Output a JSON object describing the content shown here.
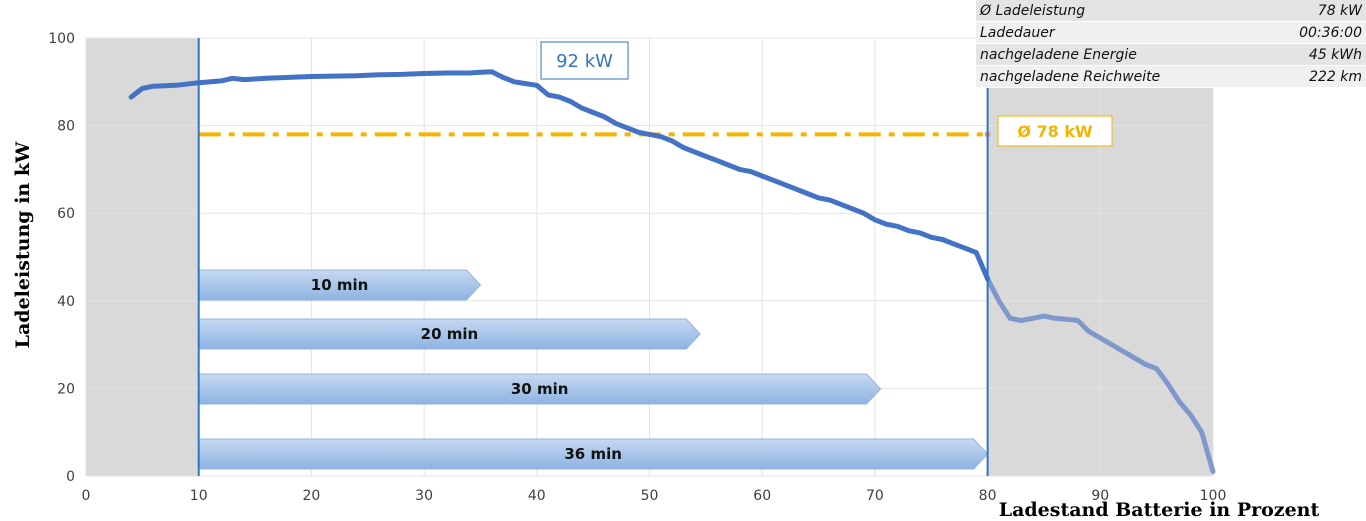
{
  "chart_data": {
    "type": "line",
    "title": "",
    "ylabel": "Ladeleistung in kW",
    "xlabel": "Ladestand Batterie in Prozent",
    "xlim": [
      0,
      100
    ],
    "ylim": [
      0,
      100
    ],
    "x_ticks": [
      0,
      10,
      20,
      30,
      40,
      50,
      60,
      70,
      80,
      90,
      100
    ],
    "y_ticks": [
      0,
      20,
      40,
      60,
      80,
      100
    ],
    "grid": true,
    "colors": {
      "line": "#4472c4",
      "line_faded": "#7f98cc",
      "average": "#f4b400",
      "shade": "#d9d9d9",
      "marker": "#2f75c7",
      "bar_top": "#c6d9f0",
      "bar_bottom": "#8db3e2"
    },
    "shaded_regions": [
      [
        0,
        10
      ],
      [
        80,
        100
      ]
    ],
    "markers_x": [
      10,
      80
    ],
    "series": [
      {
        "x": [
          4,
          5,
          6,
          8,
          10,
          12,
          13,
          14,
          16,
          18,
          20,
          22,
          24,
          26,
          28,
          30,
          32,
          34,
          35,
          36,
          37,
          38,
          39,
          40,
          41,
          42,
          43,
          44,
          45,
          46,
          47,
          48,
          49,
          50,
          51,
          52,
          53,
          54,
          55,
          56,
          57,
          58,
          59,
          60,
          61,
          62,
          63,
          64,
          65,
          66,
          67,
          68,
          69,
          70,
          71,
          72,
          73,
          74,
          75,
          76,
          77,
          78,
          79,
          80,
          81,
          82,
          83,
          84,
          85,
          86,
          87,
          88,
          89,
          90,
          91,
          92,
          93,
          94,
          95,
          96,
          97,
          98,
          99,
          100
        ],
        "y": [
          86.5,
          88.5,
          89,
          89.2,
          89.8,
          90.2,
          90.8,
          90.5,
          90.8,
          91,
          91.2,
          91.3,
          91.4,
          91.6,
          91.7,
          91.9,
          92,
          92,
          92.2,
          92.3,
          91,
          90,
          89.6,
          89.2,
          87,
          86.5,
          85.5,
          84,
          83,
          82,
          80.5,
          79.5,
          78.5,
          78,
          77.5,
          76.5,
          75,
          74,
          73,
          72,
          71,
          70,
          69.5,
          68.5,
          67.5,
          66.5,
          65.5,
          64.5,
          63.5,
          63,
          62,
          61,
          60,
          58.5,
          57.5,
          57,
          56,
          55.5,
          54.5,
          54,
          53,
          52,
          51,
          45,
          40,
          36,
          35.5,
          36,
          36.5,
          36,
          35.8,
          35.5,
          33,
          31.5,
          30,
          28.5,
          27,
          25.5,
          24.5,
          21,
          17,
          14,
          10,
          1
        ]
      }
    ],
    "annotations": {
      "peak_label": "92 kW",
      "average_label": "Ø 78 kW",
      "average_value": 78
    },
    "duration_bars": [
      {
        "label": "10 min",
        "start": 10,
        "end": 35
      },
      {
        "label": "20 min",
        "start": 10,
        "end": 54.5
      },
      {
        "label": "30 min",
        "start": 10,
        "end": 70.5
      },
      {
        "label": "36 min",
        "start": 10,
        "end": 80
      }
    ]
  },
  "info_table": [
    {
      "label": "Ø Ladeleistung",
      "value": "78 kW"
    },
    {
      "label": "Ladedauer",
      "value": "00:36:00"
    },
    {
      "label": "nachgeladene Energie",
      "value": "45 kWh"
    },
    {
      "label": "nachgeladene Reichweite",
      "value": "222 km"
    }
  ]
}
